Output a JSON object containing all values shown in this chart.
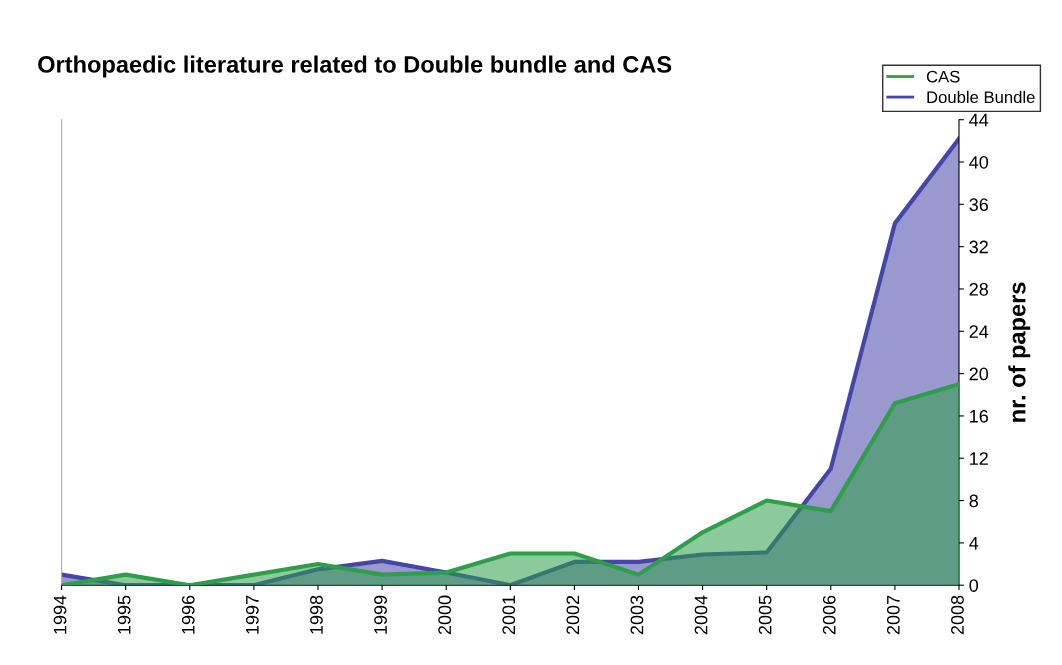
{
  "chart_data": {
    "type": "area",
    "title": "Orthopaedic literature related to Double bundle and CAS",
    "ylabel": "nr. of papers",
    "categories": [
      "1994",
      "1995",
      "1996",
      "1997",
      "1998",
      "1999",
      "2000",
      "2001",
      "2002",
      "2003",
      "2004",
      "2005",
      "2006",
      "2007",
      "2008"
    ],
    "series": [
      {
        "name": "Double Bundle",
        "color": "#4646a8",
        "values": [
          1,
          0,
          0,
          0,
          1.5,
          2.3,
          1.2,
          0,
          2.2,
          2.2,
          2.9,
          3.1,
          11,
          34.2,
          42.2
        ]
      },
      {
        "name": "CAS",
        "color": "#2e9e48",
        "values": [
          0,
          1,
          0,
          1,
          2,
          1,
          1.2,
          3,
          3,
          1,
          5,
          8,
          7,
          17.2,
          19
        ]
      }
    ],
    "ylim": [
      0,
      44
    ],
    "yticks": [
      0,
      4,
      8,
      12,
      16,
      20,
      24,
      28,
      32,
      36,
      40,
      44
    ],
    "grid": false,
    "legend": "top right"
  }
}
